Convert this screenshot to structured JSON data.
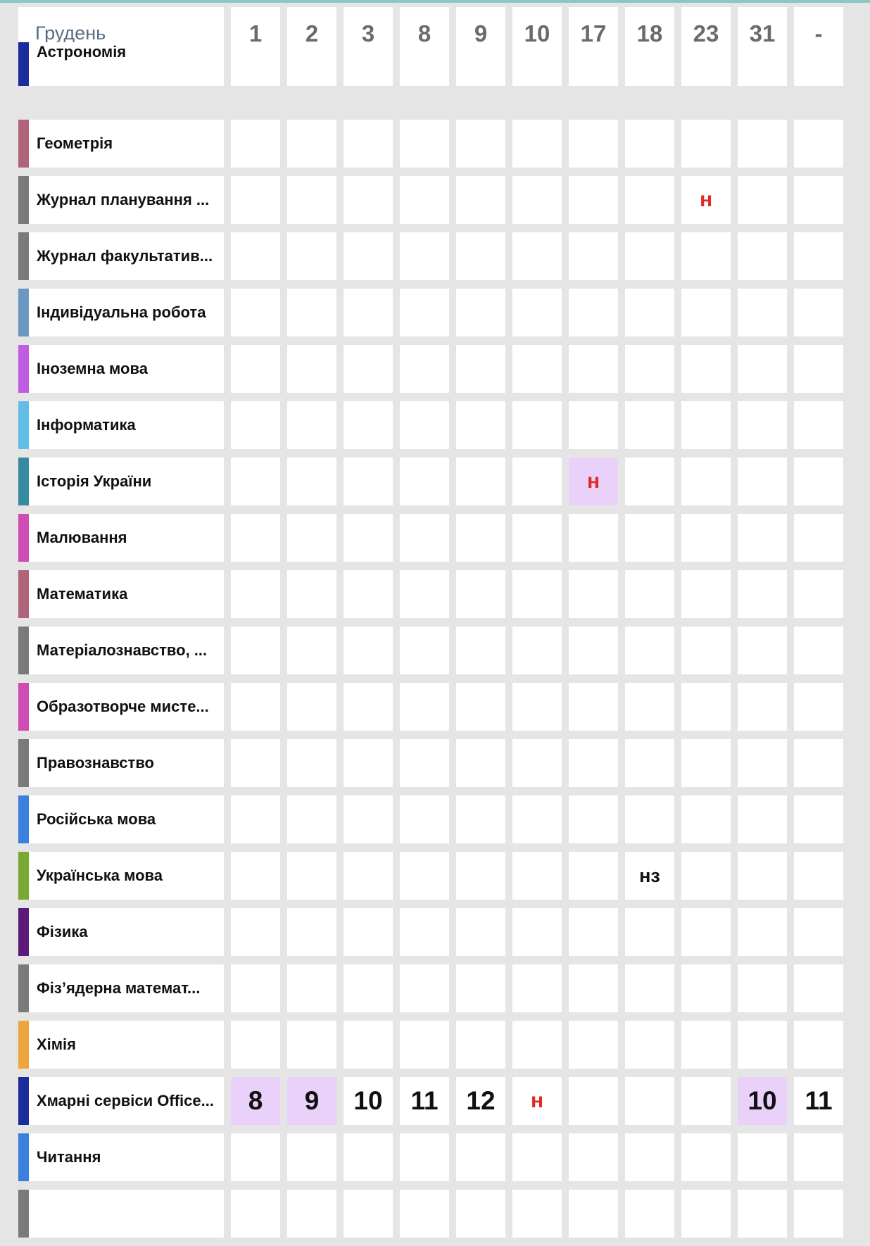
{
  "header": {
    "month": "Грудень",
    "days": [
      "1",
      "2",
      "3",
      "8",
      "9",
      "10",
      "17",
      "18",
      "23",
      "31",
      "-"
    ]
  },
  "colors": {
    "header_underline": "#15246f",
    "absence": "#e12a24",
    "highlight": "#ead1f9",
    "top_accent": "#8ec6c5"
  },
  "subjects": [
    {
      "name": "Астрономія",
      "color": "#1a2d9a",
      "marks": [
        "",
        "",
        "",
        "",
        "",
        "",
        "",
        "",
        "",
        "",
        ""
      ]
    },
    {
      "name": "Геометрія",
      "color": "#b0647a",
      "marks": [
        "",
        "",
        "",
        "",
        "",
        "",
        "",
        "",
        "",
        "",
        ""
      ]
    },
    {
      "name": "Журнал планування ...",
      "color": "#7a7a7a",
      "marks": [
        "",
        "",
        "",
        "",
        "",
        "",
        "",
        "",
        "н",
        "",
        ""
      ]
    },
    {
      "name": "Журнал факультатив...",
      "color": "#7a7a7a",
      "marks": [
        "",
        "",
        "",
        "",
        "",
        "",
        "",
        "",
        "",
        "",
        ""
      ]
    },
    {
      "name": "Індивідуальна робота",
      "color": "#6a98c0",
      "marks": [
        "",
        "",
        "",
        "",
        "",
        "",
        "",
        "",
        "",
        "",
        ""
      ]
    },
    {
      "name": "Іноземна мова",
      "color": "#c05ce0",
      "marks": [
        "",
        "",
        "",
        "",
        "",
        "",
        "",
        "",
        "",
        "",
        ""
      ]
    },
    {
      "name": "Інформатика",
      "color": "#62bde6",
      "marks": [
        "",
        "",
        "",
        "",
        "",
        "",
        "",
        "",
        "",
        "",
        ""
      ]
    },
    {
      "name": "Історія України",
      "color": "#358aa0",
      "marks": [
        "",
        "",
        "",
        "",
        "",
        "",
        "н",
        "",
        "",
        "",
        ""
      ]
    },
    {
      "name": "Малювання",
      "color": "#d04cb5",
      "marks": [
        "",
        "",
        "",
        "",
        "",
        "",
        "",
        "",
        "",
        "",
        ""
      ]
    },
    {
      "name": "Математика",
      "color": "#b0647a",
      "marks": [
        "",
        "",
        "",
        "",
        "",
        "",
        "",
        "",
        "",
        "",
        ""
      ]
    },
    {
      "name": "Матеріалознавство, ...",
      "color": "#7a7a7a",
      "marks": [
        "",
        "",
        "",
        "",
        "",
        "",
        "",
        "",
        "",
        "",
        ""
      ]
    },
    {
      "name": "Образотворче мисте...",
      "color": "#d04cb5",
      "marks": [
        "",
        "",
        "",
        "",
        "",
        "",
        "",
        "",
        "",
        "",
        ""
      ]
    },
    {
      "name": "Правознавство",
      "color": "#7a7a7a",
      "marks": [
        "",
        "",
        "",
        "",
        "",
        "",
        "",
        "",
        "",
        "",
        ""
      ]
    },
    {
      "name": "Російська мова",
      "color": "#3a80dc",
      "marks": [
        "",
        "",
        "",
        "",
        "",
        "",
        "",
        "",
        "",
        "",
        ""
      ]
    },
    {
      "name": "Українська мова",
      "color": "#7aa832",
      "marks": [
        "",
        "",
        "",
        "",
        "",
        "",
        "",
        "нз",
        "",
        "",
        ""
      ]
    },
    {
      "name": "Фізика",
      "color": "#5c1a78",
      "marks": [
        "",
        "",
        "",
        "",
        "",
        "",
        "",
        "",
        "",
        "",
        ""
      ]
    },
    {
      "name": "Фіз’ядерна математ...",
      "color": "#7a7a7a",
      "marks": [
        "",
        "",
        "",
        "",
        "",
        "",
        "",
        "",
        "",
        "",
        ""
      ]
    },
    {
      "name": "Хімія",
      "color": "#eda63c",
      "marks": [
        "",
        "",
        "",
        "",
        "",
        "",
        "",
        "",
        "",
        "",
        ""
      ]
    },
    {
      "name": "Хмарні сервіси Office...",
      "color": "#1a2d9a",
      "marks": [
        "8",
        "9",
        "10",
        "11",
        "12",
        "н",
        "",
        "",
        "",
        "10",
        "11"
      ]
    },
    {
      "name": "Читання",
      "color": "#3a80dc",
      "marks": [
        "",
        "",
        "",
        "",
        "",
        "",
        "",
        "",
        "",
        "",
        ""
      ]
    },
    {
      "name": "",
      "color": "#7a7a7a",
      "marks": [
        "",
        "",
        "",
        "",
        "",
        "",
        "",
        "",
        "",
        "",
        ""
      ]
    }
  ],
  "highlighted_cells": [
    {
      "row": 7,
      "col": 6
    },
    {
      "row": 18,
      "col": 0
    },
    {
      "row": 18,
      "col": 1
    },
    {
      "row": 18,
      "col": 9
    }
  ]
}
